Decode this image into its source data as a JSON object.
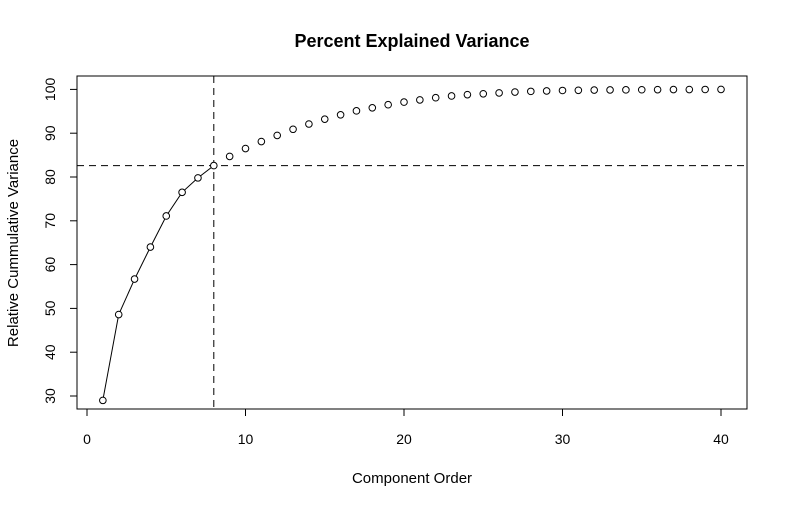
{
  "chart_data": {
    "type": "scatter",
    "title": "Percent Explained Variance",
    "xlabel": "Component Order",
    "ylabel": "Relative Cummulative Variance",
    "xlim": [
      0,
      40
    ],
    "ylim": [
      30,
      100
    ],
    "xticks": [
      0,
      10,
      20,
      30,
      40
    ],
    "yticks": [
      30,
      40,
      50,
      60,
      70,
      80,
      90,
      100
    ],
    "grid": false,
    "line_connected_through_x": 8,
    "reference_lines": {
      "vertical_x": 8,
      "horizontal_y": 82.6
    },
    "series": [
      {
        "x": [
          1,
          2,
          3,
          4,
          5,
          6,
          7,
          8,
          9,
          10,
          11,
          12,
          13,
          14,
          15,
          16,
          17,
          18,
          19,
          20,
          21,
          22,
          23,
          24,
          25,
          26,
          27,
          28,
          29,
          30,
          31,
          32,
          33,
          34,
          35,
          36,
          37,
          38,
          39,
          40
        ],
        "y": [
          29.0,
          48.6,
          56.7,
          64.0,
          71.1,
          76.5,
          79.8,
          82.6,
          84.7,
          86.5,
          88.1,
          89.5,
          90.9,
          92.1,
          93.2,
          94.2,
          95.1,
          95.8,
          96.5,
          97.1,
          97.6,
          98.1,
          98.5,
          98.8,
          99.0,
          99.2,
          99.4,
          99.55,
          99.65,
          99.75,
          99.8,
          99.85,
          99.88,
          99.9,
          99.92,
          99.94,
          99.96,
          99.97,
          99.98,
          100.0
        ]
      }
    ]
  }
}
